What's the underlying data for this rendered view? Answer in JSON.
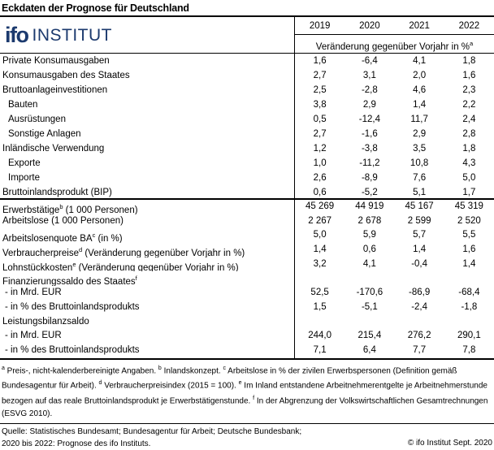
{
  "title": "Eckdaten der Prognose für Deutschland",
  "logo": {
    "brand": "ifo",
    "brand_suffix": "INSTITUT",
    "color": "#1c3a6e"
  },
  "chart_data": {
    "type": "table",
    "title": "Eckdaten der Prognose für Deutschland",
    "columns": [
      "2019",
      "2020",
      "2021",
      "2022"
    ],
    "unit_header": "Veränderung gegenüber Vorjahr in %",
    "unit_header_sup": "a",
    "rows": [
      {
        "label": "Private Konsumausgaben",
        "indent": 0,
        "values": [
          "1,6",
          "-6,4",
          "4,1",
          "1,8"
        ]
      },
      {
        "label": "Konsumausgaben des Staates",
        "indent": 0,
        "values": [
          "2,7",
          "3,1",
          "2,0",
          "1,6"
        ]
      },
      {
        "label": "Bruttoanlageinvestitionen",
        "indent": 0,
        "values": [
          "2,5",
          "-2,8",
          "4,6",
          "2,3"
        ]
      },
      {
        "label": "Bauten",
        "indent": 1,
        "values": [
          "3,8",
          "2,9",
          "1,4",
          "2,2"
        ]
      },
      {
        "label": "Ausrüstungen",
        "indent": 1,
        "values": [
          "0,5",
          "-12,4",
          "11,7",
          "2,4"
        ]
      },
      {
        "label": "Sonstige Anlagen",
        "indent": 1,
        "values": [
          "2,7",
          "-1,6",
          "2,9",
          "2,8"
        ]
      },
      {
        "label": "Inländische Verwendung",
        "indent": 0,
        "values": [
          "1,2",
          "-3,8",
          "3,5",
          "1,8"
        ]
      },
      {
        "label": "Exporte",
        "indent": 1,
        "values": [
          "1,0",
          "-11,2",
          "10,8",
          "4,3"
        ]
      },
      {
        "label": "Importe",
        "indent": 1,
        "values": [
          "2,6",
          "-8,9",
          "7,6",
          "5,0"
        ]
      },
      {
        "label": "Bruttoinlandsprodukt (BIP)",
        "indent": 0,
        "thick": true,
        "values": [
          "0,6",
          "-5,2",
          "5,1",
          "1,7"
        ]
      },
      {
        "label": "Erwerbstätige",
        "sup": "b",
        "suffix": " (1 000 Personen)",
        "indent": 0,
        "sec2": true,
        "values": [
          "45 269",
          "44 919",
          "45 167",
          "45 319"
        ]
      },
      {
        "label": "Arbeitslose (1 000 Personen)",
        "indent": 0,
        "sec2": true,
        "values": [
          "2 267",
          "2 678",
          "2 599",
          "2 520"
        ]
      },
      {
        "label": "Arbeitslosenquote BA",
        "sup": "c",
        "suffix": " (in %)",
        "indent": 0,
        "sec2": true,
        "values": [
          "5,0",
          "5,9",
          "5,7",
          "5,5"
        ]
      },
      {
        "label": "Verbraucherpreise",
        "sup": "d",
        "suffix": " (Veränderung gegenüber Vorjahr in %)",
        "indent": 0,
        "sec2": true,
        "values": [
          "1,4",
          "0,6",
          "1,4",
          "1,6"
        ]
      },
      {
        "label": "Lohnstückkosten",
        "sup": "e",
        "suffix": " (Veränderung gegenüber Vorjahr in %)",
        "indent": 0,
        "sec2": true,
        "values": [
          "3,2",
          "4,1",
          "-0,4",
          "1,4"
        ]
      },
      {
        "label": "Finanzierungssaldo des Staates",
        "sup": "f",
        "indent": 0,
        "sec2": true,
        "values": [
          "",
          "",
          "",
          ""
        ]
      },
      {
        "label": "- in Mrd. EUR",
        "indent": 2,
        "sec2": true,
        "values": [
          "52,5",
          "-170,6",
          "-86,9",
          "-68,4"
        ]
      },
      {
        "label": "- in % des Bruttoinlandsprodukts",
        "indent": 2,
        "sec2": true,
        "values": [
          "1,5",
          "-5,1",
          "-2,4",
          "-1,8"
        ]
      },
      {
        "label": "Leistungsbilanzsaldo",
        "indent": 0,
        "sec2": true,
        "values": [
          "",
          "",
          "",
          ""
        ]
      },
      {
        "label": "- in Mrd. EUR",
        "indent": 2,
        "sec2": true,
        "values": [
          "244,0",
          "215,4",
          "276,2",
          "290,1"
        ]
      },
      {
        "label": "- in % des Bruttoinlandsprodukts",
        "indent": 2,
        "sec2": true,
        "values": [
          "7,1",
          "6,4",
          "7,7",
          "7,8"
        ]
      }
    ]
  },
  "footnotes": [
    {
      "sup": "a",
      "text": " Preis-, nicht-kalenderbereinigte Angaben. "
    },
    {
      "sup": "b",
      "text": " Inlandskonzept. "
    },
    {
      "sup": "c",
      "text": " Arbeitslose in % der zivilen Erwerbspersonen (Definition gemäß Bundesagentur für Arbeit). "
    },
    {
      "sup": "d",
      "text": " Verbraucherpreisindex (2015 = 100). "
    },
    {
      "sup": "e",
      "text": " Im Inland entstandene Arbeitnehmerentgelte je Arbeitnehmerstunde bezogen auf das reale Bruttoinlandsprodukt je Erwerbstätigenstunde. "
    },
    {
      "sup": "f",
      "text": " In der Abgrenzung der Volkswirtschaftlichen Gesamtrechnungen (ESVG 2010)."
    }
  ],
  "source": {
    "line1": "Quelle: Statistisches Bundesamt; Bundesagentur für Arbeit; Deutsche Bundesbank;",
    "line2": "2020 bis 2022: Prognose des ifo Instituts.",
    "copyright": "© ifo Institut Sept. 2020"
  }
}
